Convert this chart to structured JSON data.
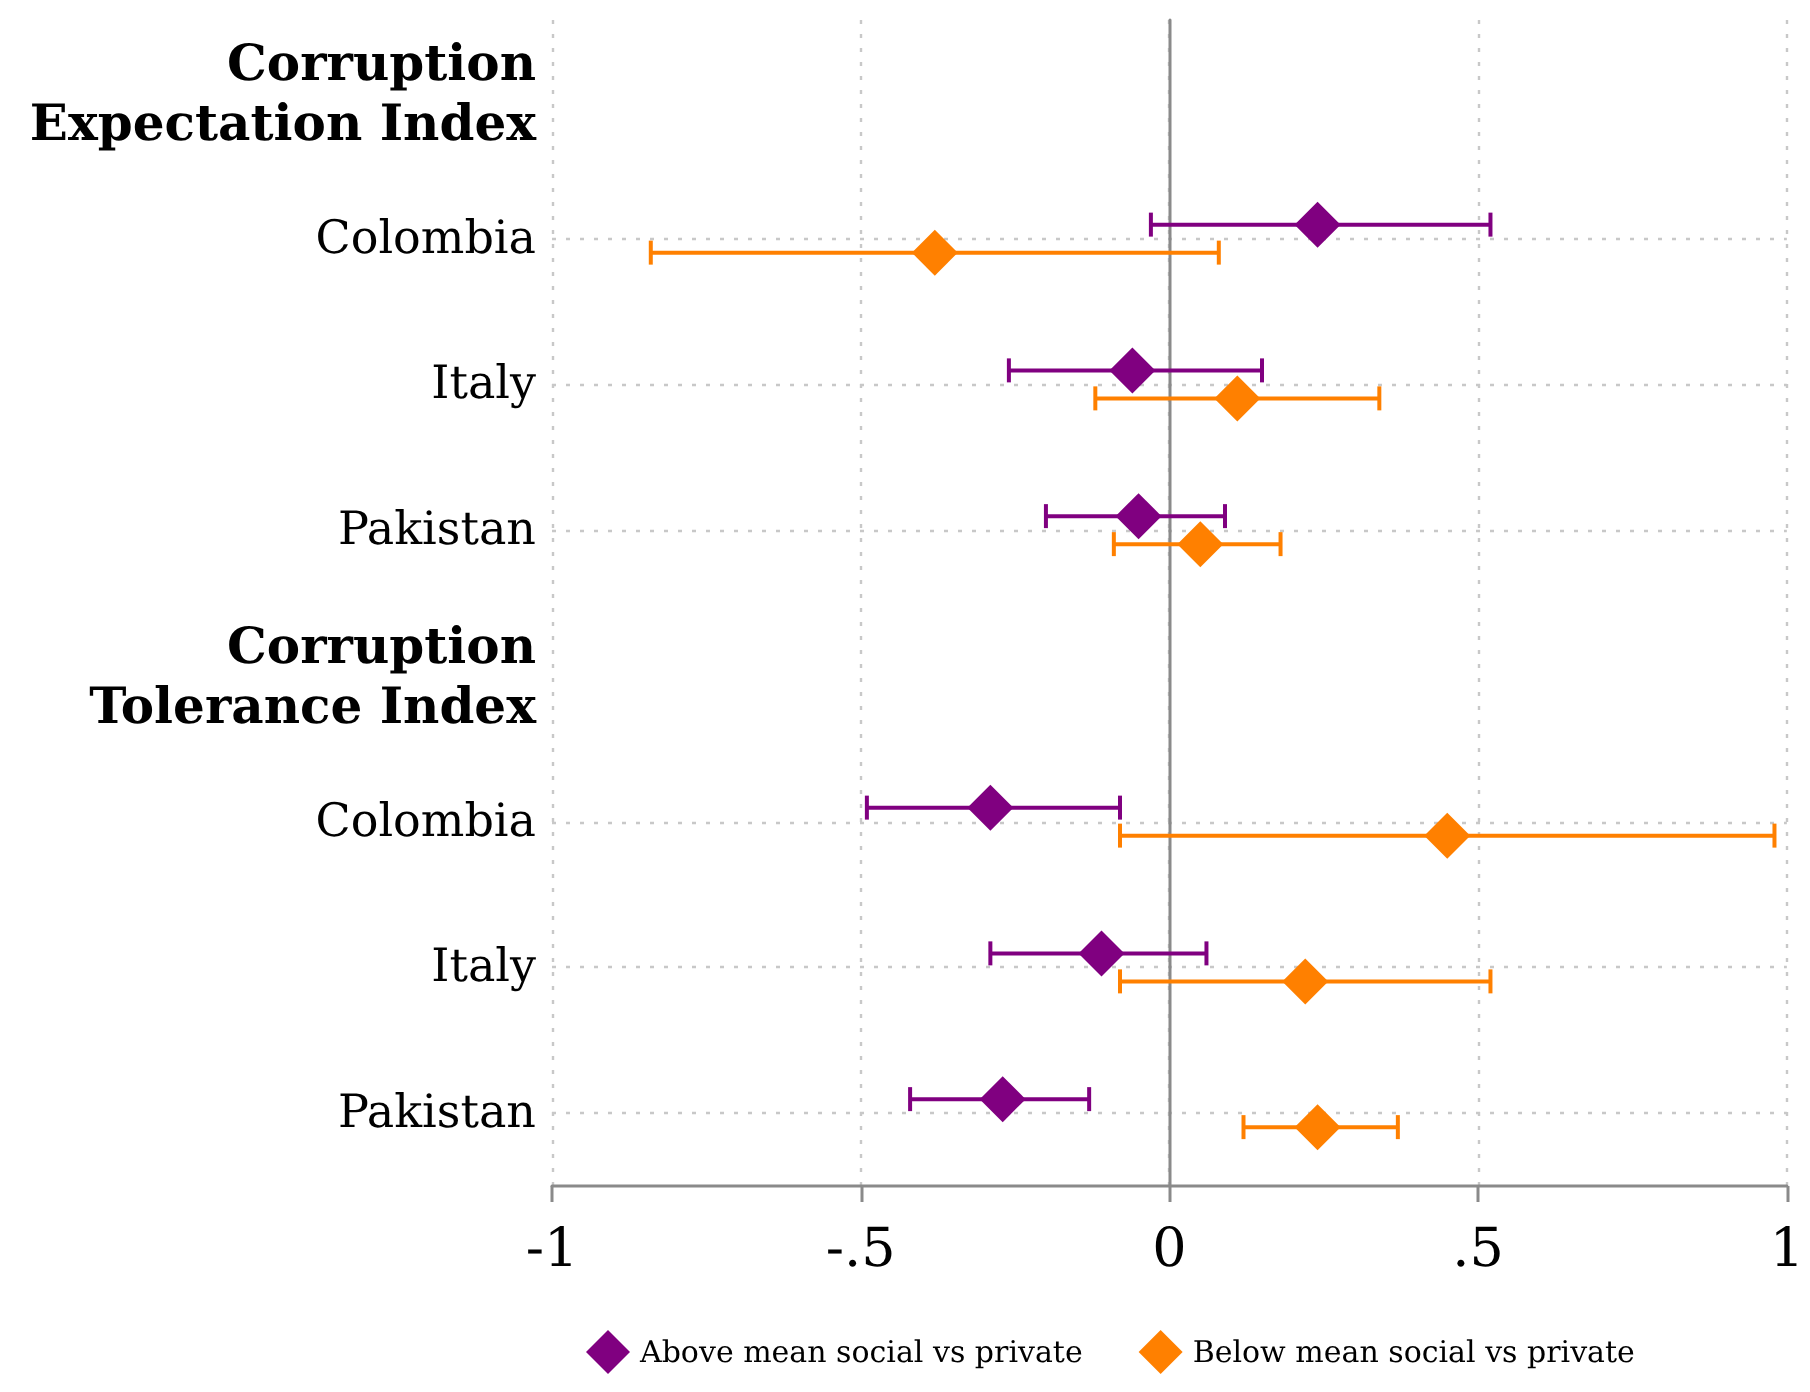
{
  "chart_data": {
    "type": "scatter",
    "orientation": "horizontal",
    "categories": [
      "Corruption Expectation Index",
      "Colombia",
      "Italy",
      "Pakistan",
      "Corruption Tolerance Index",
      "Colombia",
      "Italy",
      "Pakistan"
    ],
    "series": [
      {
        "name": "Above mean social vs private",
        "color": "#800080",
        "values": [
          null,
          0.24,
          -0.06,
          -0.05,
          null,
          -0.29,
          -0.11,
          -0.27
        ],
        "errors": [
          null,
          [
            -0.03,
            0.52
          ],
          [
            -0.26,
            0.15
          ],
          [
            -0.2,
            0.09
          ],
          null,
          [
            -0.49,
            -0.08
          ],
          [
            -0.29,
            0.06
          ],
          [
            -0.42,
            -0.13
          ]
        ]
      },
      {
        "name": "Below mean social vs private",
        "color": "#ff8000",
        "values": [
          null,
          -0.38,
          0.11,
          0.05,
          null,
          0.45,
          0.22,
          0.24
        ],
        "errors": [
          null,
          [
            -0.84,
            0.08
          ],
          [
            -0.12,
            0.34
          ],
          [
            -0.09,
            0.18
          ],
          null,
          [
            -0.08,
            0.98
          ],
          [
            -0.08,
            0.52
          ],
          [
            0.12,
            0.37
          ]
        ]
      }
    ],
    "xlim": [
      -1,
      1
    ],
    "xticks": [
      -1,
      {
        "value": -0.5,
        "label": "-.5"
      },
      0,
      {
        "value": 0.5,
        "label": ".5"
      },
      1
    ],
    "grid": true,
    "legend": "bottom",
    "marker": "diamond"
  }
}
